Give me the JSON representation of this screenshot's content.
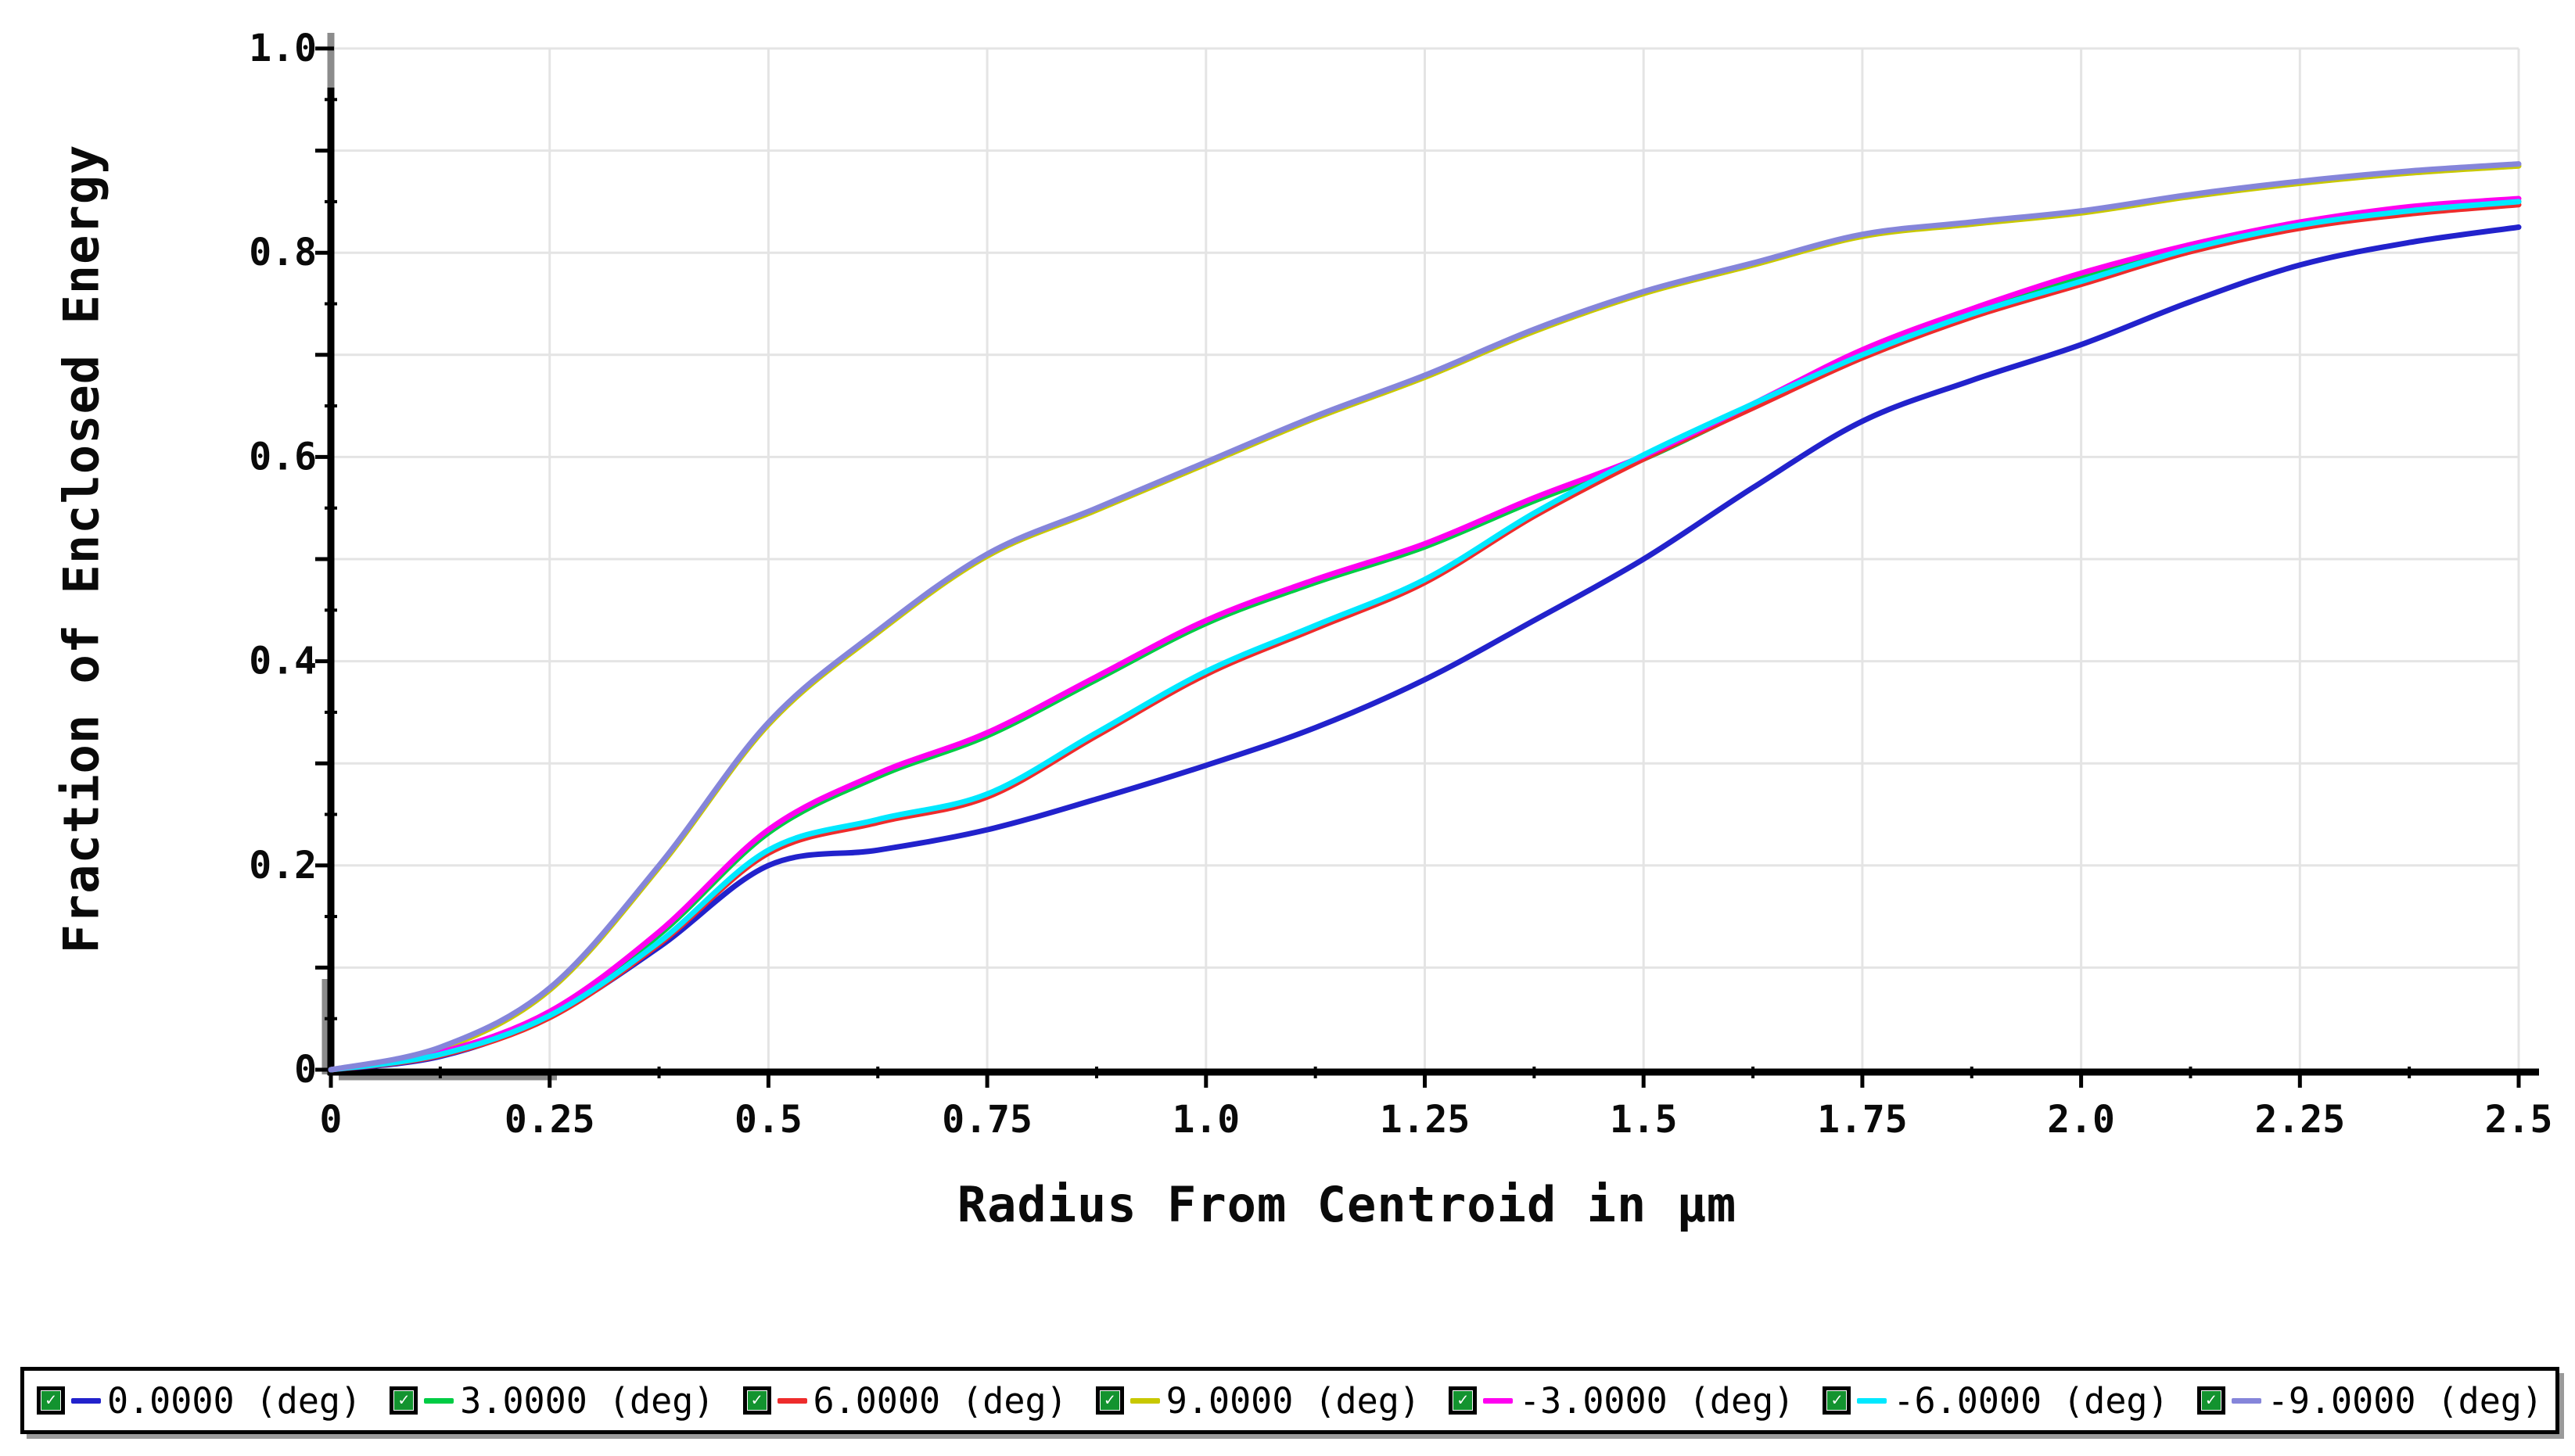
{
  "chart_data": {
    "type": "line",
    "title": "",
    "xlabel": "Radius From Centroid in µm",
    "ylabel": "Fraction of Enclosed Energy",
    "xlim": [
      0,
      2.5
    ],
    "ylim": [
      0,
      1.0
    ],
    "grid": {
      "x_step": 0.25,
      "y_step": 0.1,
      "color": "#e4e4e4",
      "on": true
    },
    "axis_color": "#000000",
    "axis_shadow_color": "#8c8c8c",
    "legend_position": "bottom",
    "x_ticks": {
      "values": [
        0,
        0.25,
        0.5,
        0.75,
        1.0,
        1.25,
        1.5,
        1.75,
        2.0,
        2.25,
        2.5
      ],
      "labels": [
        "0",
        "0.25",
        "0.5",
        "0.75",
        "1.0",
        "1.25",
        "1.5",
        "1.75",
        "2.0",
        "2.25",
        "2.5"
      ]
    },
    "y_ticks": {
      "values": [
        0,
        0.2,
        0.4,
        0.6,
        0.8,
        1.0
      ],
      "labels": [
        "0",
        "0.2",
        "0.4",
        "0.6",
        "0.8",
        "1.0"
      ]
    },
    "x": [
      0,
      0.125,
      0.25,
      0.375,
      0.5,
      0.625,
      0.75,
      0.875,
      1.0,
      1.125,
      1.25,
      1.375,
      1.5,
      1.625,
      1.75,
      1.875,
      2.0,
      2.125,
      2.25,
      2.375,
      2.5
    ],
    "series": [
      {
        "name": "0.0000 (deg)",
        "color": "#2222cc",
        "values": [
          0,
          0.013,
          0.052,
          0.12,
          0.2,
          0.215,
          0.235,
          0.265,
          0.298,
          0.335,
          0.382,
          0.44,
          0.5,
          0.57,
          0.635,
          0.675,
          0.71,
          0.752,
          0.788,
          0.81,
          0.825
        ]
      },
      {
        "name": "3.0000 (deg)",
        "color": "#00cc44",
        "values": [
          0,
          0.016,
          0.055,
          0.132,
          0.232,
          0.287,
          0.327,
          0.382,
          0.437,
          0.477,
          0.512,
          0.557,
          0.598,
          0.649,
          0.702,
          0.742,
          0.777,
          0.805,
          0.827,
          0.842,
          0.85
        ]
      },
      {
        "name": "6.0000 (deg)",
        "color": "#ee2c2c",
        "values": [
          0,
          0.014,
          0.051,
          0.123,
          0.212,
          0.242,
          0.267,
          0.327,
          0.387,
          0.432,
          0.477,
          0.542,
          0.598,
          0.648,
          0.697,
          0.737,
          0.769,
          0.801,
          0.824,
          0.838,
          0.847
        ]
      },
      {
        "name": "9.0000 (deg)",
        "color": "#c8c800",
        "values": [
          0,
          0.02,
          0.078,
          0.198,
          0.338,
          0.428,
          0.503,
          0.548,
          0.593,
          0.638,
          0.678,
          0.723,
          0.76,
          0.788,
          0.816,
          0.828,
          0.839,
          0.855,
          0.868,
          0.878,
          0.885
        ]
      },
      {
        "name": "-3.0000 (deg)",
        "color": "#ff00f0",
        "values": [
          0,
          0.017,
          0.057,
          0.135,
          0.235,
          0.29,
          0.33,
          0.385,
          0.44,
          0.48,
          0.515,
          0.56,
          0.601,
          0.652,
          0.705,
          0.745,
          0.78,
          0.808,
          0.83,
          0.845,
          0.853
        ]
      },
      {
        "name": "-6.0000 (deg)",
        "color": "#00e8ff",
        "values": [
          0,
          0.015,
          0.053,
          0.125,
          0.215,
          0.245,
          0.27,
          0.33,
          0.39,
          0.435,
          0.48,
          0.545,
          0.602,
          0.652,
          0.7,
          0.74,
          0.772,
          0.804,
          0.827,
          0.841,
          0.85
        ]
      },
      {
        "name": "-9.0000 (deg)",
        "color": "#8585da",
        "values": [
          0,
          0.022,
          0.08,
          0.2,
          0.34,
          0.43,
          0.505,
          0.55,
          0.595,
          0.64,
          0.68,
          0.725,
          0.762,
          0.79,
          0.818,
          0.83,
          0.841,
          0.857,
          0.87,
          0.88,
          0.887
        ]
      }
    ]
  },
  "legend": {
    "checkbox_icon": "checked-checkbox-icon",
    "checkbox_check_color": "#ffffff",
    "checkbox_fill_color": "#13932f"
  }
}
